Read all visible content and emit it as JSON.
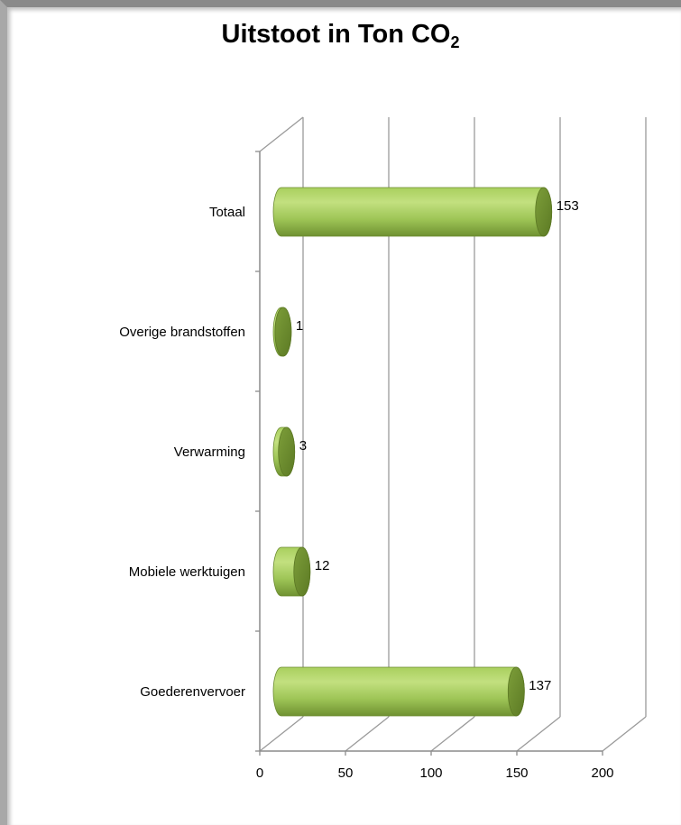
{
  "chart_data": {
    "type": "bar",
    "orientation": "horizontal",
    "style": "3d-cylinder",
    "title_main": "Uitstoot in Ton CO",
    "title_subscript": "2",
    "categories": [
      "Goederenvervoer",
      "Mobiele werktuigen",
      "Verwarming",
      "Overige brandstoffen",
      "Totaal"
    ],
    "values": [
      137,
      12,
      3,
      1,
      153
    ],
    "data_labels": [
      "137",
      "12",
      "3",
      "1",
      "153"
    ],
    "xlim": [
      0,
      200
    ],
    "x_ticks": [
      "0",
      "50",
      "100",
      "150",
      "200"
    ],
    "grid": true,
    "legend": "none",
    "colors": {
      "bar_light": "#b7d971",
      "bar_mid": "#95bc4f",
      "bar_dark": "#6e8f32",
      "cap": "#6a8a2c",
      "axis": "#8c8c8c",
      "gridline": "#9a9a9a"
    }
  }
}
